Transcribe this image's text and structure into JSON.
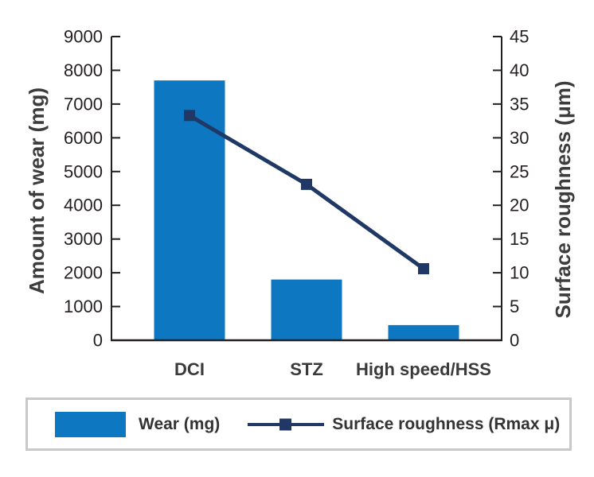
{
  "chart_data": {
    "type": "bar",
    "subtype": "bar-line-combo",
    "categories": [
      "DCI",
      "STZ",
      "High speed/HSS"
    ],
    "series": [
      {
        "name": "Wear (mg)",
        "type": "bar",
        "axis": "left",
        "values": [
          7700,
          1800,
          450
        ],
        "color": "#0d78c1"
      },
      {
        "name": "Surface roughness (Rmax μ)",
        "type": "line",
        "axis": "right",
        "values": [
          33.3,
          23.1,
          10.6
        ],
        "color": "#1f3866"
      }
    ],
    "left_axis": {
      "label": "Amount of wear (mg)",
      "min": 0,
      "max": 9000,
      "step": 1000,
      "ticks": [
        "0",
        "1000",
        "2000",
        "3000",
        "4000",
        "5000",
        "6000",
        "7000",
        "8000",
        "9000"
      ]
    },
    "right_axis": {
      "label": "Surface roughness (μm)",
      "min": 0,
      "max": 45,
      "step": 5,
      "ticks": [
        "0",
        "5",
        "10",
        "15",
        "20",
        "25",
        "30",
        "35",
        "40",
        "45"
      ]
    },
    "grid": false,
    "legend_position": "bottom"
  },
  "legend": {
    "items": [
      {
        "label": "Wear (mg)",
        "swatch": "bar",
        "color": "#0d78c1"
      },
      {
        "label": "Surface roughness (Rmax μ)",
        "swatch": "line-marker",
        "color": "#1f3866"
      }
    ]
  },
  "colors": {
    "bar": "#0d78c1",
    "line": "#1f3866",
    "axis": "#231f20",
    "label_text": "#3a3a3a",
    "legend_border": "#c9c9c9",
    "background": "#ffffff"
  }
}
